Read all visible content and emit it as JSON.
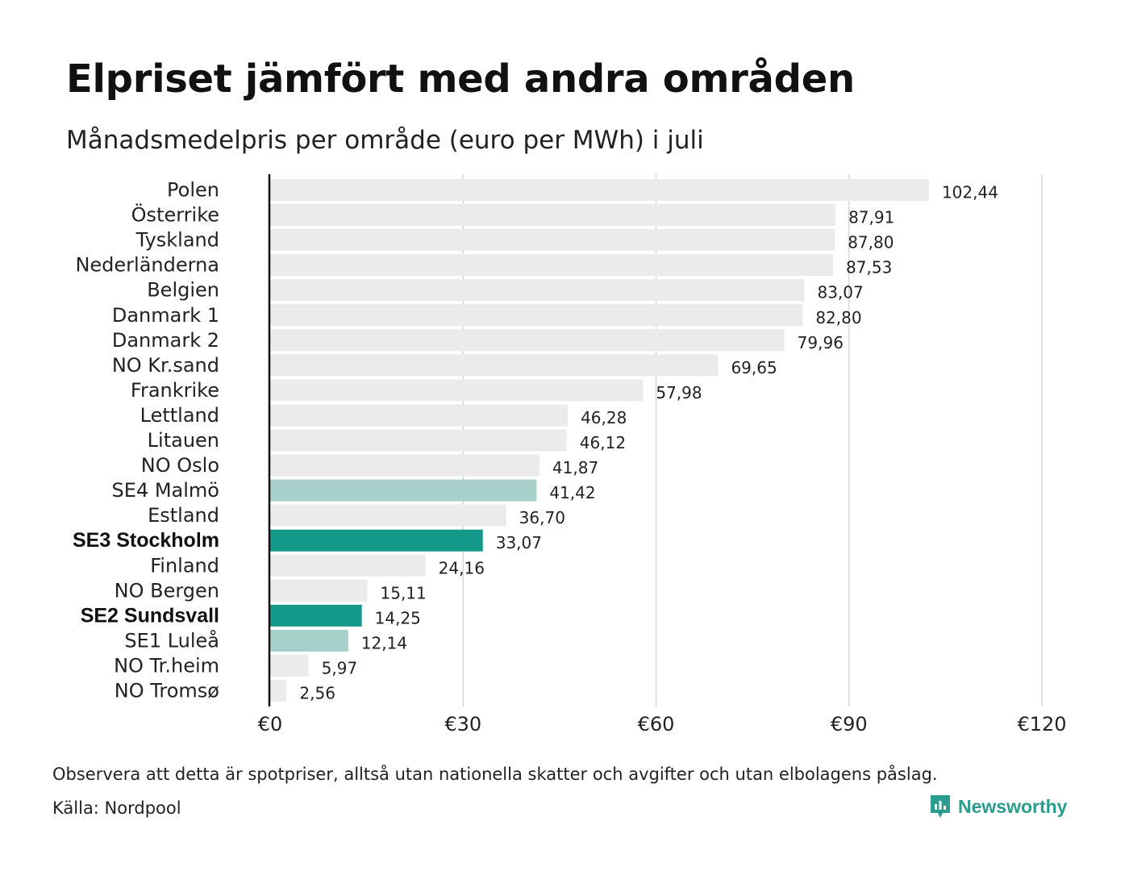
{
  "header": {
    "title": "Elpriset jämfört med andra områden",
    "subtitle": "Månadsmedelpris per område (euro per MWh) i juli"
  },
  "footer": {
    "note": "Observera att detta är spotpriser, alltså utan nationella skatter och avgifter och utan elbolagens påslag.",
    "source": "Källa: Nordpool",
    "brand": "Newsworthy"
  },
  "colors": {
    "bar_default": "#ebebeb",
    "bar_highlight": "#14988a",
    "bar_neighbor": "#a6d0c9",
    "grid": "#d0d0d0",
    "axis": "#111111",
    "brand": "#2a9d8f"
  },
  "chart_data": {
    "type": "bar",
    "orientation": "horizontal",
    "categories": [
      "Polen",
      "Österrike",
      "Tyskland",
      "Nederländerna",
      "Belgien",
      "Danmark  1",
      "Danmark  2",
      "NO Kr.sand",
      "Frankrike",
      "Lettland",
      "Litauen",
      "NO Oslo",
      "SE4  Malmö",
      "Estland",
      "SE3 Stockholm",
      "Finland",
      "NO Bergen",
      "SE2 Sundsvall",
      "SE1  Luleå",
      "NO Tr.heim",
      "NO Tromsø"
    ],
    "values": [
      102.44,
      87.91,
      87.8,
      87.53,
      83.07,
      82.8,
      79.96,
      69.65,
      57.98,
      46.28,
      46.12,
      41.87,
      41.42,
      36.7,
      33.07,
      24.16,
      15.11,
      14.25,
      12.14,
      5.97,
      2.56
    ],
    "value_labels": [
      "102,44",
      "87,91",
      "87,80",
      "87,53",
      "83,07",
      "82,80",
      "79,96",
      "69,65",
      "57,98",
      "46,28",
      "46,12",
      "41,87",
      "41,42",
      "36,70",
      "33,07",
      "24,16",
      "15,11",
      "14,25",
      "12,14",
      "5,97",
      "2,56"
    ],
    "highlight": [
      "default",
      "default",
      "default",
      "default",
      "default",
      "default",
      "default",
      "default",
      "default",
      "default",
      "default",
      "default",
      "neighbor",
      "default",
      "highlight",
      "default",
      "default",
      "highlight",
      "neighbor",
      "default",
      "default"
    ],
    "xlim": [
      0,
      120
    ],
    "xticks": [
      0,
      30,
      60,
      90,
      120
    ],
    "xtick_labels": [
      "€0",
      "€30",
      "€60",
      "€90",
      "€120"
    ],
    "grid": true
  }
}
